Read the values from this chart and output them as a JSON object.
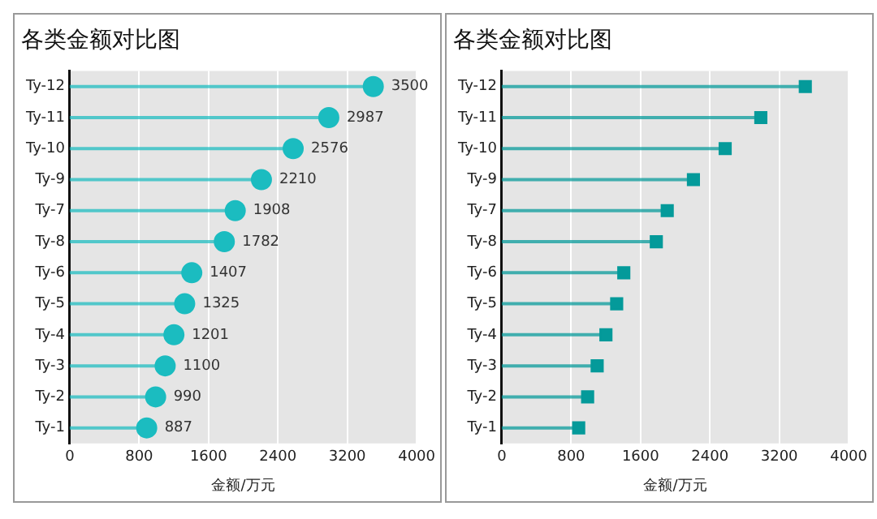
{
  "chart_data": [
    {
      "type": "lollipop",
      "orientation": "horizontal",
      "title": "各类金额对比图",
      "xlabel": "金额/万元",
      "categories": [
        "Ty-12",
        "Ty-11",
        "Ty-10",
        "Ty-9",
        "Ty-7",
        "Ty-8",
        "Ty-6",
        "Ty-5",
        "Ty-4",
        "Ty-3",
        "Ty-2",
        "Ty-1"
      ],
      "series": [
        {
          "color": "#1bbcc0",
          "values": [
            3500,
            2987,
            2576,
            2210,
            1908,
            1782,
            1407,
            1325,
            1201,
            1100,
            990,
            887
          ]
        }
      ],
      "xlim": [
        0,
        4000
      ],
      "xticks": [
        0,
        800,
        1600,
        2400,
        3200,
        4000
      ],
      "grid": "x",
      "marker": "circle",
      "data_labels": true,
      "legend": false
    },
    {
      "type": "lollipop",
      "orientation": "horizontal",
      "title": "各类金额对比图",
      "xlabel": "金额/万元",
      "categories": [
        "Ty-12",
        "Ty-11",
        "Ty-10",
        "Ty-9",
        "Ty-7",
        "Ty-8",
        "Ty-6",
        "Ty-5",
        "Ty-4",
        "Ty-3",
        "Ty-2",
        "Ty-1"
      ],
      "series": [
        {
          "color": "#049a9a",
          "values": [
            3500,
            2987,
            2576,
            2210,
            1908,
            1782,
            1407,
            1325,
            1201,
            1100,
            990,
            887
          ]
        }
      ],
      "xlim": [
        0,
        4000
      ],
      "xticks": [
        0,
        800,
        1600,
        2400,
        3200,
        4000
      ],
      "grid": "x",
      "marker": "square",
      "legend": false
    }
  ]
}
